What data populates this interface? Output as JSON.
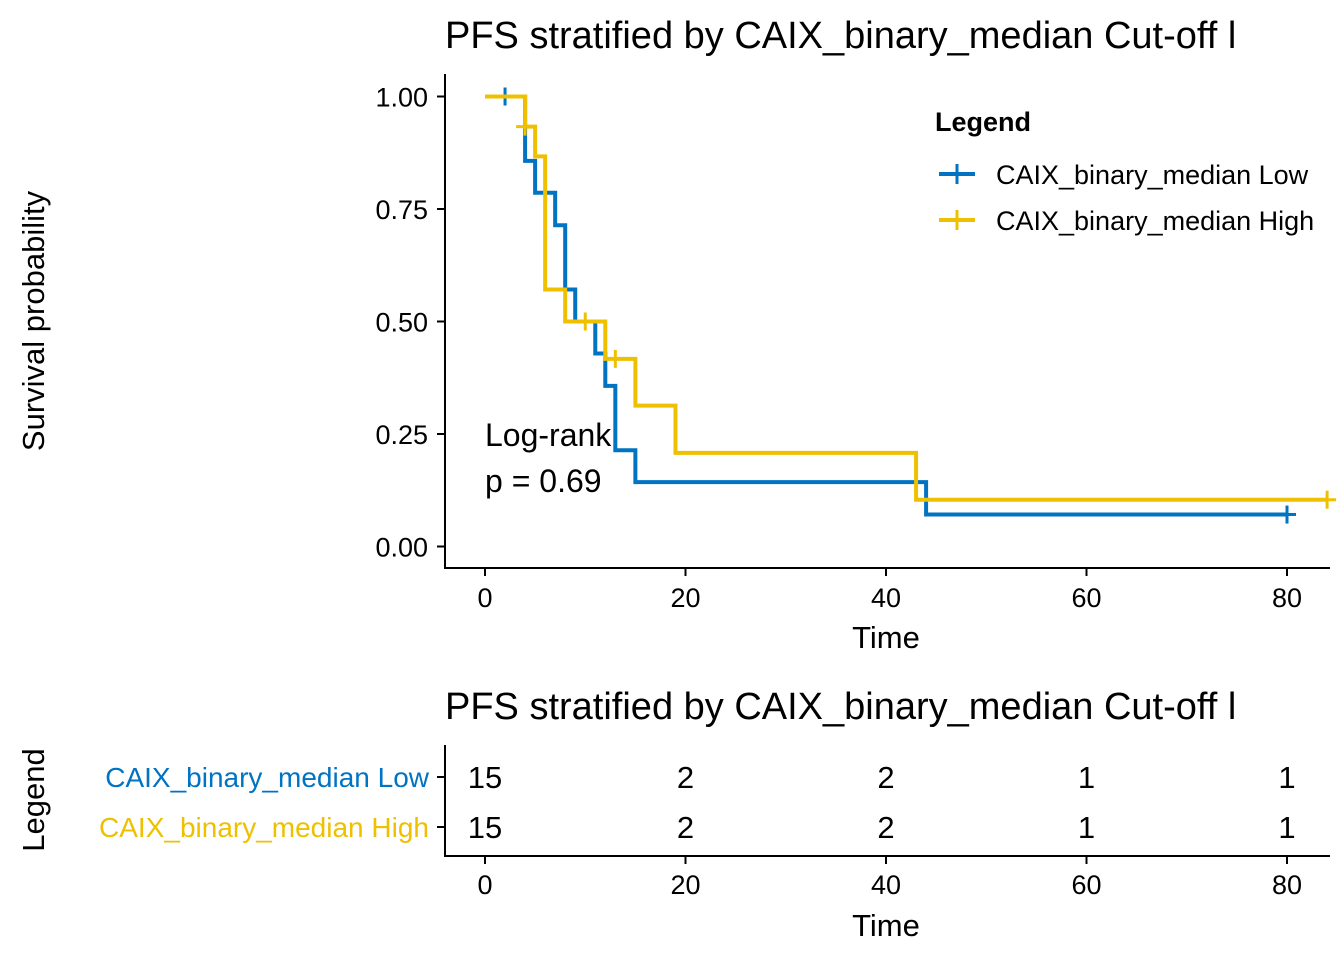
{
  "colors": {
    "low": "#0073C2",
    "high": "#EFC000"
  },
  "km_plot": {
    "title": "PFS stratified by CAIX_binary_median Cut-off l",
    "xlabel": "Time",
    "ylabel": "Survival probability",
    "legend_title": "Legend",
    "annotation_line1": "Log-rank",
    "annotation_line2": "p = 0.69"
  },
  "risk_table": {
    "title": "PFS stratified by CAIX_binary_median Cut-off l",
    "xlabel": "Time",
    "ylabel": "Legend",
    "time_points": [
      0,
      20,
      40,
      60,
      80
    ],
    "rows": [
      {
        "label": "CAIX_binary_median Low",
        "values": [
          15,
          2,
          2,
          1,
          1
        ],
        "color": "#0073C2"
      },
      {
        "label": "CAIX_binary_median High",
        "values": [
          15,
          2,
          2,
          1,
          1
        ],
        "color": "#EFC000"
      }
    ]
  },
  "chart_data": [
    {
      "type": "line",
      "subtype": "kaplan-meier-step",
      "title": "PFS stratified by CAIX_binary_median Cut-off l",
      "xlabel": "Time",
      "ylabel": "Survival probability",
      "xlim": [
        0,
        84
      ],
      "ylim": [
        0,
        1
      ],
      "x_ticks": [
        0,
        20,
        40,
        60,
        80
      ],
      "y_ticks": [
        "0.00",
        "0.25",
        "0.50",
        "0.75",
        "1.00"
      ],
      "legend_position": "top-right",
      "grid": false,
      "series": [
        {
          "name": "CAIX_binary_median Low",
          "color": "#0073C2",
          "steps": [
            [
              0,
              1.0
            ],
            [
              4,
              0.857
            ],
            [
              5,
              0.786
            ],
            [
              7,
              0.714
            ],
            [
              8,
              0.571
            ],
            [
              9,
              0.5
            ],
            [
              11,
              0.429
            ],
            [
              12,
              0.357
            ],
            [
              13,
              0.214
            ],
            [
              15,
              0.143
            ],
            [
              44,
              0.071
            ],
            [
              80,
              0.071
            ]
          ],
          "censored": [
            [
              2,
              1.0
            ],
            [
              80,
              0.071
            ]
          ]
        },
        {
          "name": "CAIX_binary_median High",
          "color": "#EFC000",
          "steps": [
            [
              0,
              1.0
            ],
            [
              4,
              0.933
            ],
            [
              5,
              0.867
            ],
            [
              6,
              0.571
            ],
            [
              8,
              0.5
            ],
            [
              12,
              0.417
            ],
            [
              15,
              0.313
            ],
            [
              19,
              0.208
            ],
            [
              43,
              0.104
            ],
            [
              84,
              0.104
            ]
          ],
          "censored": [
            [
              4,
              0.933
            ],
            [
              10,
              0.5
            ],
            [
              13,
              0.417
            ],
            [
              84,
              0.104
            ]
          ]
        }
      ]
    },
    {
      "type": "table",
      "title": "PFS stratified by CAIX_binary_median Cut-off l",
      "xlabel": "Time",
      "ylabel": "Legend",
      "columns": [
        0,
        20,
        40,
        60,
        80
      ],
      "rows": [
        {
          "name": "CAIX_binary_median Low",
          "values": [
            15,
            2,
            2,
            1,
            1
          ]
        },
        {
          "name": "CAIX_binary_median High",
          "values": [
            15,
            2,
            2,
            1,
            1
          ]
        }
      ]
    }
  ]
}
